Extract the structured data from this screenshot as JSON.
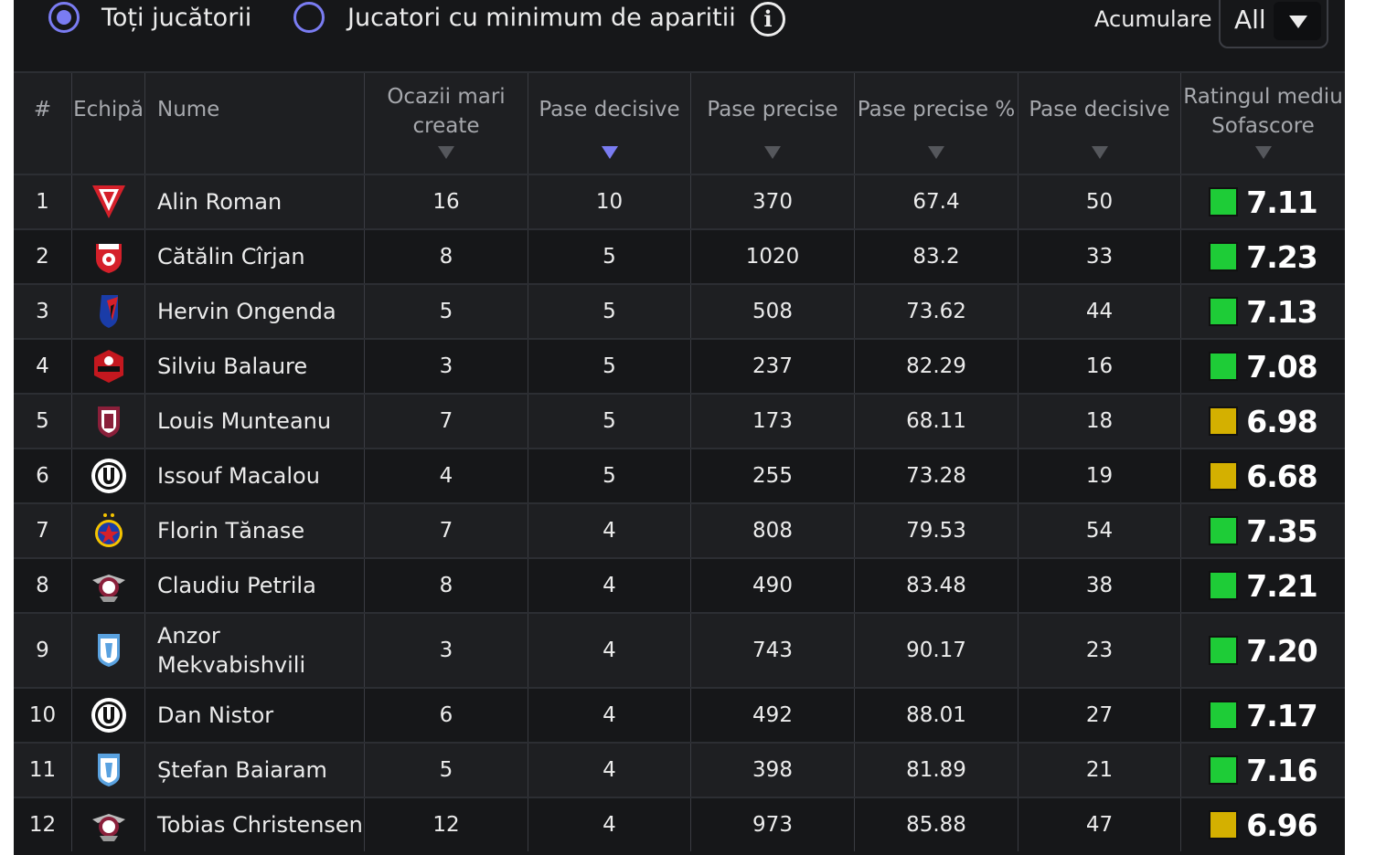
{
  "filters": {
    "all_players_label": "Toți jucătorii",
    "min_appearances_label": "Jucatori cu minimum de aparitii",
    "info_icon": "info-icon",
    "accumulation_label": "Acumulare",
    "accumulation_value": "All"
  },
  "columns": {
    "rank": "#",
    "team": "Echipă",
    "name": "Nume",
    "big_chances_l1": "Ocazii mari",
    "big_chances_l2": "create",
    "assists": "Pase decisive",
    "accurate_passes": "Pase precise",
    "accurate_passes_pct": "Pase precise %",
    "key_passes": "Pase decisive",
    "rating_l1": "Ratingul mediu",
    "rating_l2": "Sofascore"
  },
  "colors": {
    "accent": "#7a7cf2",
    "rating_green": "#1ecc37",
    "rating_yellow": "#d4b000"
  },
  "rows": [
    {
      "rank": "1",
      "team_icon": "uta-arad-logo",
      "name_l1": "Alin Roman",
      "name_l2": "",
      "big_chances": "16",
      "assists": "10",
      "accurate_passes": "370",
      "pct": "67.4",
      "key_passes": "50",
      "rating": "7.11",
      "rating_color": "#1ecc37"
    },
    {
      "rank": "2",
      "team_icon": "dinamo-logo",
      "name_l1": "Cătălin Cîrjan",
      "name_l2": "",
      "big_chances": "8",
      "assists": "5",
      "accurate_passes": "1020",
      "pct": "83.2",
      "key_passes": "33",
      "rating": "7.23",
      "rating_color": "#1ecc37"
    },
    {
      "rank": "3",
      "team_icon": "botosani-logo",
      "name_l1": "Hervin Ongenda",
      "name_l2": "",
      "big_chances": "5",
      "assists": "5",
      "accurate_passes": "508",
      "pct": "73.62",
      "key_passes": "44",
      "rating": "7.13",
      "rating_color": "#1ecc37"
    },
    {
      "rank": "4",
      "team_icon": "hermannstadt-logo",
      "name_l1": "Silviu Balaure",
      "name_l2": "",
      "big_chances": "3",
      "assists": "5",
      "accurate_passes": "237",
      "pct": "82.29",
      "key_passes": "16",
      "rating": "7.08",
      "rating_color": "#1ecc37"
    },
    {
      "rank": "5",
      "team_icon": "cfr-cluj-logo",
      "name_l1": "Louis Munteanu",
      "name_l2": "",
      "big_chances": "7",
      "assists": "5",
      "accurate_passes": "173",
      "pct": "68.11",
      "key_passes": "18",
      "rating": "6.98",
      "rating_color": "#d4b000"
    },
    {
      "rank": "6",
      "team_icon": "u-cluj-logo",
      "name_l1": "Issouf Macalou",
      "name_l2": "",
      "big_chances": "4",
      "assists": "5",
      "accurate_passes": "255",
      "pct": "73.28",
      "key_passes": "19",
      "rating": "6.68",
      "rating_color": "#d4b000"
    },
    {
      "rank": "7",
      "team_icon": "fcsb-logo",
      "name_l1": "Florin Tănase",
      "name_l2": "",
      "big_chances": "7",
      "assists": "4",
      "accurate_passes": "808",
      "pct": "79.53",
      "key_passes": "54",
      "rating": "7.35",
      "rating_color": "#1ecc37"
    },
    {
      "rank": "8",
      "team_icon": "rapid-logo",
      "name_l1": "Claudiu Petrila",
      "name_l2": "",
      "big_chances": "8",
      "assists": "4",
      "accurate_passes": "490",
      "pct": "83.48",
      "key_passes": "38",
      "rating": "7.21",
      "rating_color": "#1ecc37"
    },
    {
      "rank": "9",
      "team_icon": "u-craiova-logo",
      "name_l1": "Anzor",
      "name_l2": "Mekvabishvili",
      "big_chances": "3",
      "assists": "4",
      "accurate_passes": "743",
      "pct": "90.17",
      "key_passes": "23",
      "rating": "7.20",
      "rating_color": "#1ecc37"
    },
    {
      "rank": "10",
      "team_icon": "u-cluj-logo",
      "name_l1": "Dan Nistor",
      "name_l2": "",
      "big_chances": "6",
      "assists": "4",
      "accurate_passes": "492",
      "pct": "88.01",
      "key_passes": "27",
      "rating": "7.17",
      "rating_color": "#1ecc37"
    },
    {
      "rank": "11",
      "team_icon": "u-craiova-logo",
      "name_l1": "Ștefan Baiaram",
      "name_l2": "",
      "big_chances": "5",
      "assists": "4",
      "accurate_passes": "398",
      "pct": "81.89",
      "key_passes": "21",
      "rating": "7.16",
      "rating_color": "#1ecc37"
    },
    {
      "rank": "12",
      "team_icon": "rapid-logo",
      "name_l1": "Tobias Christensen",
      "name_l2": "",
      "big_chances": "12",
      "assists": "4",
      "accurate_passes": "973",
      "pct": "85.88",
      "key_passes": "47",
      "rating": "6.96",
      "rating_color": "#d4b000"
    }
  ]
}
